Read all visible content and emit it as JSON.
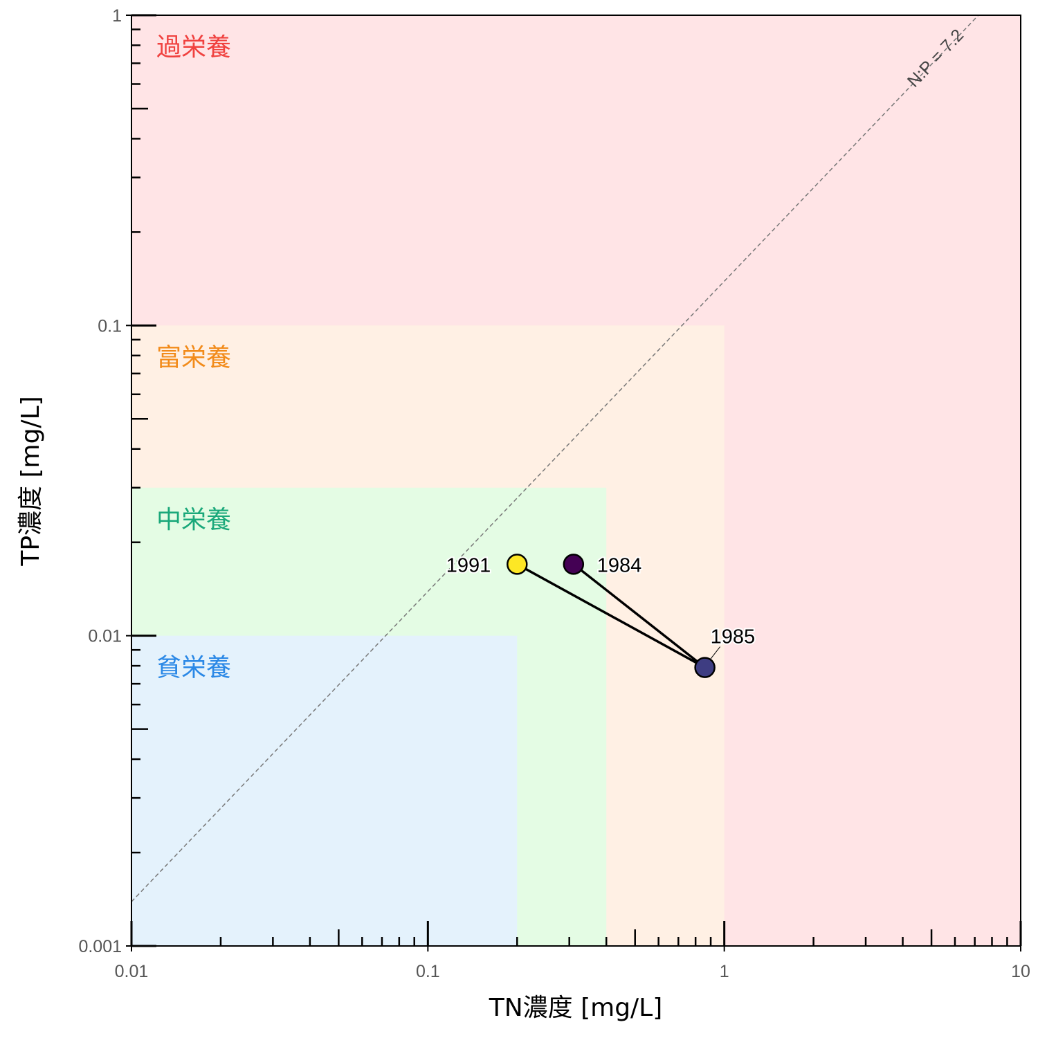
{
  "chart_data": {
    "type": "scatter",
    "xlabel": "TN濃度 [mg/L]",
    "ylabel": "TP濃度 [mg/L]",
    "xscale": "log",
    "yscale": "log",
    "xlim": [
      0.01,
      10
    ],
    "ylim": [
      0.001,
      1
    ],
    "x_tick_labels": [
      {
        "value": 0.01,
        "label": "0.01"
      },
      {
        "value": 0.1,
        "label": "0.1"
      },
      {
        "value": 1,
        "label": "1"
      },
      {
        "value": 10,
        "label": "10"
      }
    ],
    "y_tick_labels": [
      {
        "value": 0.001,
        "label": "0.001"
      },
      {
        "value": 0.01,
        "label": "0.01"
      },
      {
        "value": 0.1,
        "label": "0.1"
      },
      {
        "value": 1,
        "label": "1"
      }
    ],
    "grid": false,
    "zones": [
      {
        "label": "過栄養",
        "tn_max": 10,
        "tp_max": 1,
        "fill": "#ffe4e6",
        "label_color": "#f0413f"
      },
      {
        "label": "富栄養",
        "tn_max": 1,
        "tp_max": 0.1,
        "fill": "#fff0e4",
        "label_color": "#f28b1a"
      },
      {
        "label": "中栄養",
        "tn_max": 0.4,
        "tp_max": 0.03,
        "fill": "#e4fce4",
        "label_color": "#1aa87a"
      },
      {
        "label": "貧栄養",
        "tn_max": 0.2,
        "tp_max": 0.01,
        "fill": "#e4f2fc",
        "label_color": "#2a88e6"
      }
    ],
    "ratio_line": {
      "label": "N:P = 7.2",
      "ratio": 7.2,
      "color": "#777777",
      "style": "dashed"
    },
    "points": [
      {
        "label": "1984",
        "tn": 0.31,
        "tp": 0.017,
        "color": "#440154"
      },
      {
        "label": "1985",
        "tn": 0.86,
        "tp": 0.0079,
        "color": "#3e3d82"
      },
      {
        "label": "1991",
        "tn": 0.2,
        "tp": 0.017,
        "color": "#fde725"
      }
    ],
    "path_order": [
      "1984",
      "1985",
      "1991"
    ],
    "line_color": "#000000"
  }
}
